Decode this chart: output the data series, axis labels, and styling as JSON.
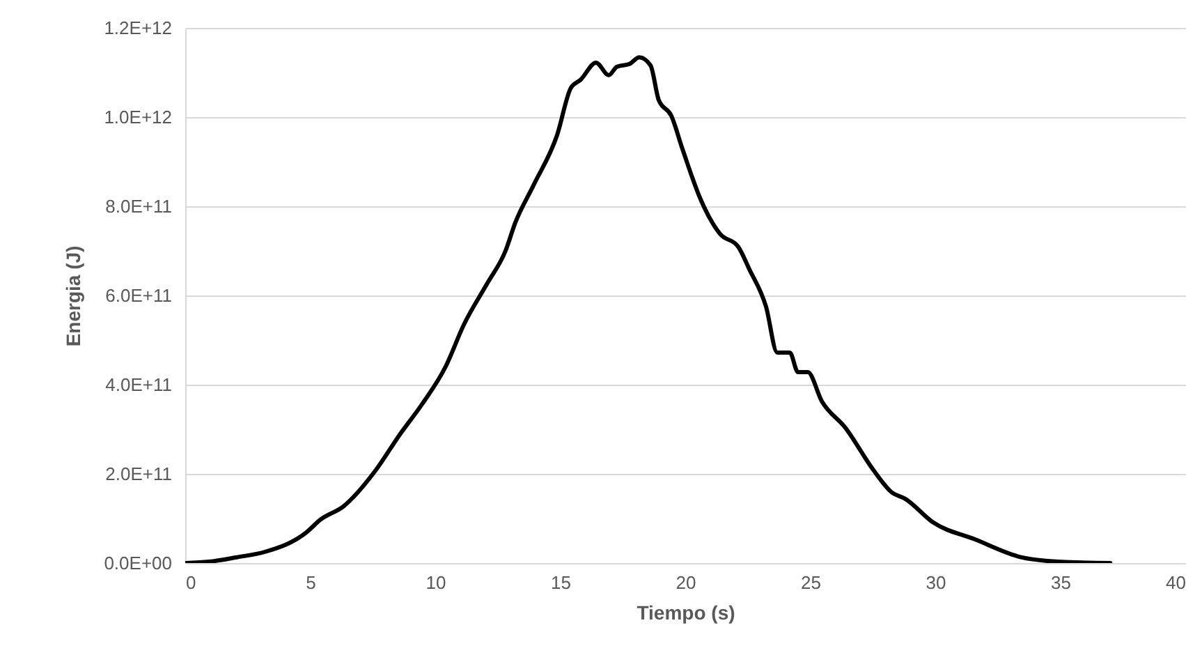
{
  "chart_data": {
    "type": "line",
    "xlabel": "Tiempo (s)",
    "ylabel": "Energia (J)",
    "x": [
      0,
      0.95,
      2.06,
      3.18,
      4.85,
      5.4,
      6.35,
      7.63,
      8.58,
      9.47,
      10.42,
      11.14,
      12.09,
      12.81,
      13.2,
      13.93,
      14.87,
      15.43,
      15.82,
      16.43,
      16.94,
      17.27,
      17.77,
      18.16,
      18.61,
      18.94,
      19.44,
      19.89,
      20.61,
      21.39,
      22.12,
      22.56,
      23.23,
      23.68,
      24.18,
      24.51,
      24.9,
      25.46,
      26.41,
      27.52,
      28.25,
      28.8,
      29.92,
      31.59,
      33.43,
      34.93,
      37
    ],
    "series": [
      {
        "color": "#000000",
        "values": [
          0,
          3000000000.0,
          13000000000.0,
          25000000000.0,
          69000000000.0,
          97000000000.0,
          128000000000.0,
          209000000000.0,
          288000000000.0,
          356000000000.0,
          441000000000.0,
          534000000000.0,
          628000000000.0,
          700000000000.0,
          763000000000.0,
          847000000000.0,
          959000000000.0,
          1066000000000.0,
          1084000000000.0,
          1122000000000.0,
          1094000000000.0,
          1113000000000.0,
          1119000000000.0,
          1134000000000.0,
          1116000000000.0,
          1038000000000.0,
          1003000000000.0,
          928000000000.0,
          816000000000.0,
          738000000000.0,
          709000000000.0,
          659000000000.0,
          575000000000.0,
          472000000000.0,
          472000000000.0,
          428000000000.0,
          428000000000.0,
          363000000000.0,
          303000000000.0,
          209000000000.0,
          159000000000.0,
          144000000000.0,
          91000000000.0,
          53000000000.0,
          13000000000.0,
          3000000000.0,
          0
        ]
      }
    ],
    "xlim": [
      0,
      40
    ],
    "xticks": [
      0,
      5,
      10,
      15,
      20,
      25,
      30,
      35,
      40
    ],
    "ylim": [
      0,
      1200000000000.0
    ],
    "yticks": [
      {
        "value": 0,
        "label": "0.0E+00"
      },
      {
        "value": 200000000000.0,
        "label": "2.0E+11"
      },
      {
        "value": 400000000000.0,
        "label": "4.0E+11"
      },
      {
        "value": 600000000000.0,
        "label": "6.0E+11"
      },
      {
        "value": 800000000000.0,
        "label": "8.0E+11"
      },
      {
        "value": 1000000000000.0,
        "label": "1.0E+12"
      },
      {
        "value": 1200000000000.0,
        "label": "1.2E+12"
      }
    ],
    "grid": "y",
    "line_style": "solid",
    "marker": "none"
  }
}
